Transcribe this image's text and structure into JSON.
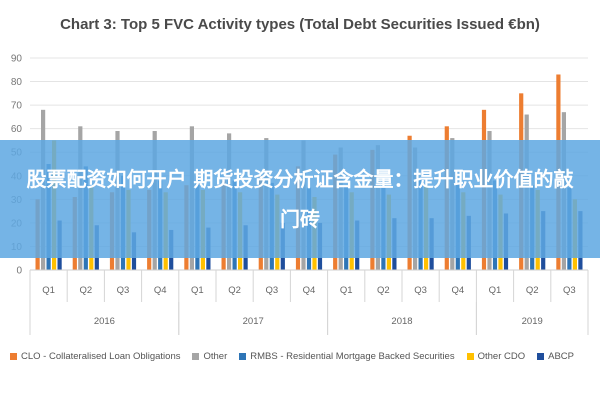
{
  "overlay": {
    "text": "股票配资如何开户 期货投资分析证含金量：提升职业价值的敲门砖"
  },
  "chart_data": {
    "type": "bar",
    "title": "Chart 3: Top 5 FVC Activity types (Total Debt Securities Issued €bn)",
    "ylim": [
      0,
      90
    ],
    "yticks": [
      0,
      10,
      20,
      30,
      40,
      50,
      60,
      70,
      80,
      90
    ],
    "grid": true,
    "legend_position": "bottom",
    "categories": [
      "Q1",
      "Q2",
      "Q3",
      "Q4",
      "Q1",
      "Q2",
      "Q3",
      "Q4",
      "Q1",
      "Q2",
      "Q3",
      "Q4",
      "Q1",
      "Q2",
      "Q3"
    ],
    "groups": [
      {
        "label": "2016",
        "start": 0,
        "end": 3
      },
      {
        "label": "2017",
        "start": 4,
        "end": 7
      },
      {
        "label": "2018",
        "start": 8,
        "end": 11
      },
      {
        "label": "2019",
        "start": 12,
        "end": 14
      }
    ],
    "series": [
      {
        "name": "CLO - Collateralised Loan Obligations",
        "color": "#ed7d31",
        "values": [
          30,
          31,
          33,
          34,
          36,
          38,
          40,
          44,
          49,
          51,
          57,
          61,
          68,
          75,
          83
        ]
      },
      {
        "name": "Other",
        "color": "#a5a5a5",
        "values": [
          68,
          61,
          59,
          59,
          61,
          58,
          56,
          55,
          52,
          53,
          52,
          56,
          59,
          66,
          67
        ]
      },
      {
        "name": "RMBS - Residential Mortgage Backed Securities",
        "color": "#2e75b6",
        "values": [
          45,
          44,
          40,
          38,
          40,
          38,
          37,
          35,
          36,
          38,
          39,
          37,
          38,
          36,
          35
        ]
      },
      {
        "name": "Other CDO",
        "color": "#ffc000",
        "values": [
          55,
          35,
          34,
          33,
          34,
          33,
          32,
          31,
          33,
          32,
          36,
          33,
          32,
          34,
          30
        ]
      },
      {
        "name": "ABCP",
        "color": "#1f4e9c",
        "values": [
          21,
          19,
          16,
          17,
          18,
          19,
          20,
          20,
          21,
          22,
          22,
          23,
          24,
          25,
          25
        ]
      }
    ]
  }
}
